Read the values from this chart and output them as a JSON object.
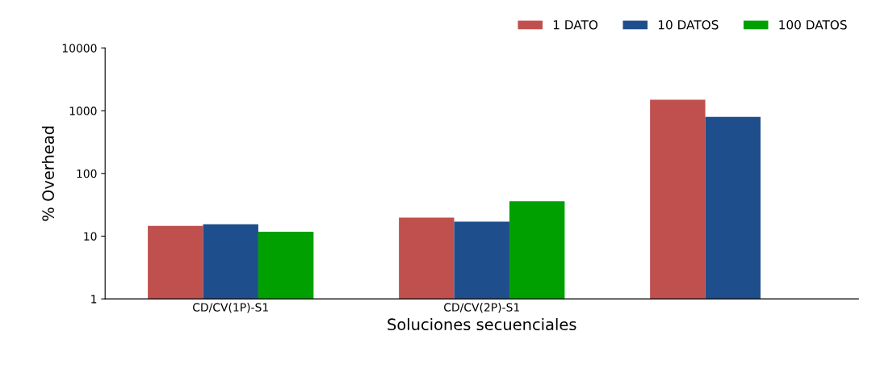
{
  "chart_data": {
    "type": "bar",
    "xlabel": "Soluciones secuenciales",
    "ylabel": "% Overhead",
    "categories": [
      "CD/CV(1P)-S1",
      "CD/CV(2P)-S1",
      null
    ],
    "log": true,
    "ylim": [
      1,
      10000
    ],
    "yticks": [
      1,
      10,
      100,
      1000,
      10000
    ],
    "grid": false,
    "legend": "top right",
    "series": [
      {
        "name": "1 DATO",
        "color": "#c0504d",
        "values": [
          14.6,
          19.7,
          1500
        ]
      },
      {
        "name": "10 DATOS",
        "color": "#1f4e8c",
        "values": [
          15.5,
          17,
          800
        ]
      },
      {
        "name": "100 DATOS",
        "color": "#00a000",
        "values": [
          11.8,
          36,
          null
        ]
      }
    ]
  }
}
